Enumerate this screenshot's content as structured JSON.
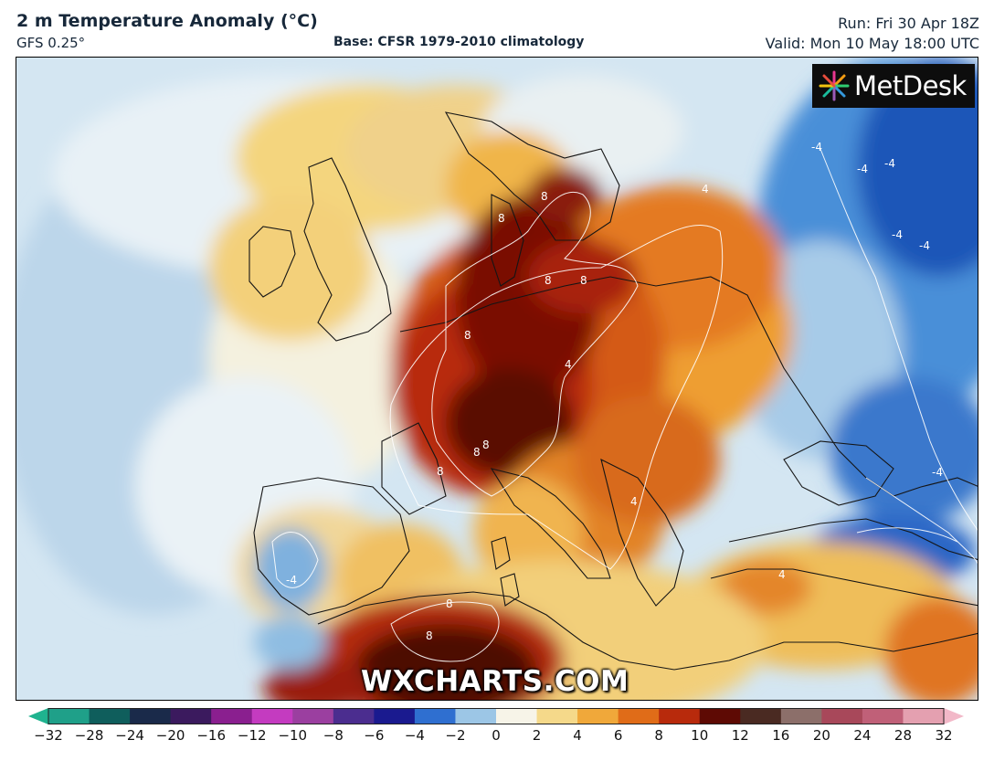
{
  "header": {
    "title": "2 m Temperature Anomaly (°C)",
    "model": "GFS 0.25°",
    "base": "Base: CFSR 1979-2010 climatology",
    "run": "Run: Fri 30 Apr 18Z",
    "valid": "Valid: Mon 10 May 18:00 UTC"
  },
  "branding": {
    "logo_text": "MetDesk",
    "watermark": "WXCHARTS.COM"
  },
  "map": {
    "contour_labels": [
      "8",
      "8",
      "8",
      "8",
      "8",
      "8",
      "8",
      "8",
      "8",
      "8",
      "4",
      "4",
      "4",
      "4",
      "-4",
      "-4",
      "-4",
      "-4",
      "-4",
      "-4",
      "-4"
    ]
  },
  "colorbar": {
    "ticks": [
      "−32",
      "−28",
      "−24",
      "−20",
      "−16",
      "−12",
      "−10",
      "−8",
      "−6",
      "−4",
      "−2",
      "0",
      "2",
      "4",
      "6",
      "8",
      "10",
      "12",
      "16",
      "20",
      "24",
      "28",
      "32"
    ],
    "colors": [
      "#1fa089",
      "#0f5e5c",
      "#1a2a4a",
      "#3b1a5e",
      "#8a1f8f",
      "#c43bc0",
      "#9b3fa0",
      "#4b2d8f",
      "#1a1a8f",
      "#2f6fd0",
      "#9cc6e6",
      "#f7f4e8",
      "#f5d98a",
      "#f0a83a",
      "#e06c18",
      "#b82a0c",
      "#5e0a04",
      "#4a2a22",
      "#8c6f6a",
      "#a8485a",
      "#c06078",
      "#e4a0b0"
    ],
    "min_color": "#1fb38f",
    "max_color": "#f2b8c8"
  }
}
